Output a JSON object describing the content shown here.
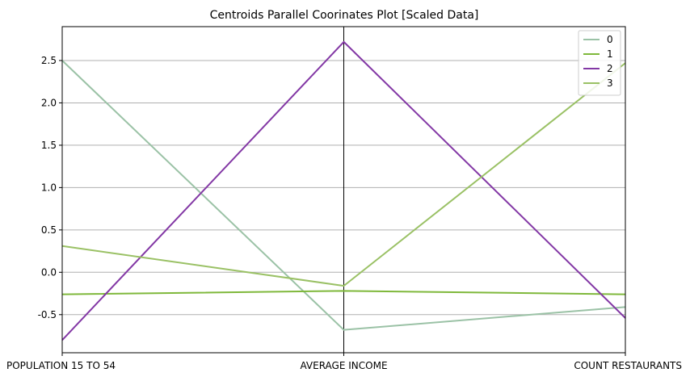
{
  "chart_data": {
    "type": "line",
    "title": "Centroids Parallel Coorinates Plot [Scaled Data]",
    "categories": [
      "POPULATION 15 TO 54",
      "AVERAGE INCOME",
      "COUNT RESTAURANTS"
    ],
    "ylim": [
      -0.95,
      2.9
    ],
    "yticks": [
      "-0.5",
      "0.0",
      "0.5",
      "1.0",
      "1.5",
      "2.0",
      "2.5"
    ],
    "ytick_values": [
      -0.5,
      0.0,
      0.5,
      1.0,
      1.5,
      2.0,
      2.5
    ],
    "grid": true,
    "legend_position": "top-right",
    "series": [
      {
        "name": "0",
        "color": "#9bc2a6",
        "values": [
          2.5,
          -0.68,
          -0.41
        ]
      },
      {
        "name": "1",
        "color": "#7fb83b",
        "values": [
          -0.26,
          -0.22,
          -0.26
        ]
      },
      {
        "name": "2",
        "color": "#8338a5",
        "values": [
          -0.8,
          2.72,
          -0.54
        ]
      },
      {
        "name": "3",
        "color": "#9ac165",
        "values": [
          0.31,
          -0.16,
          2.47
        ]
      }
    ]
  }
}
